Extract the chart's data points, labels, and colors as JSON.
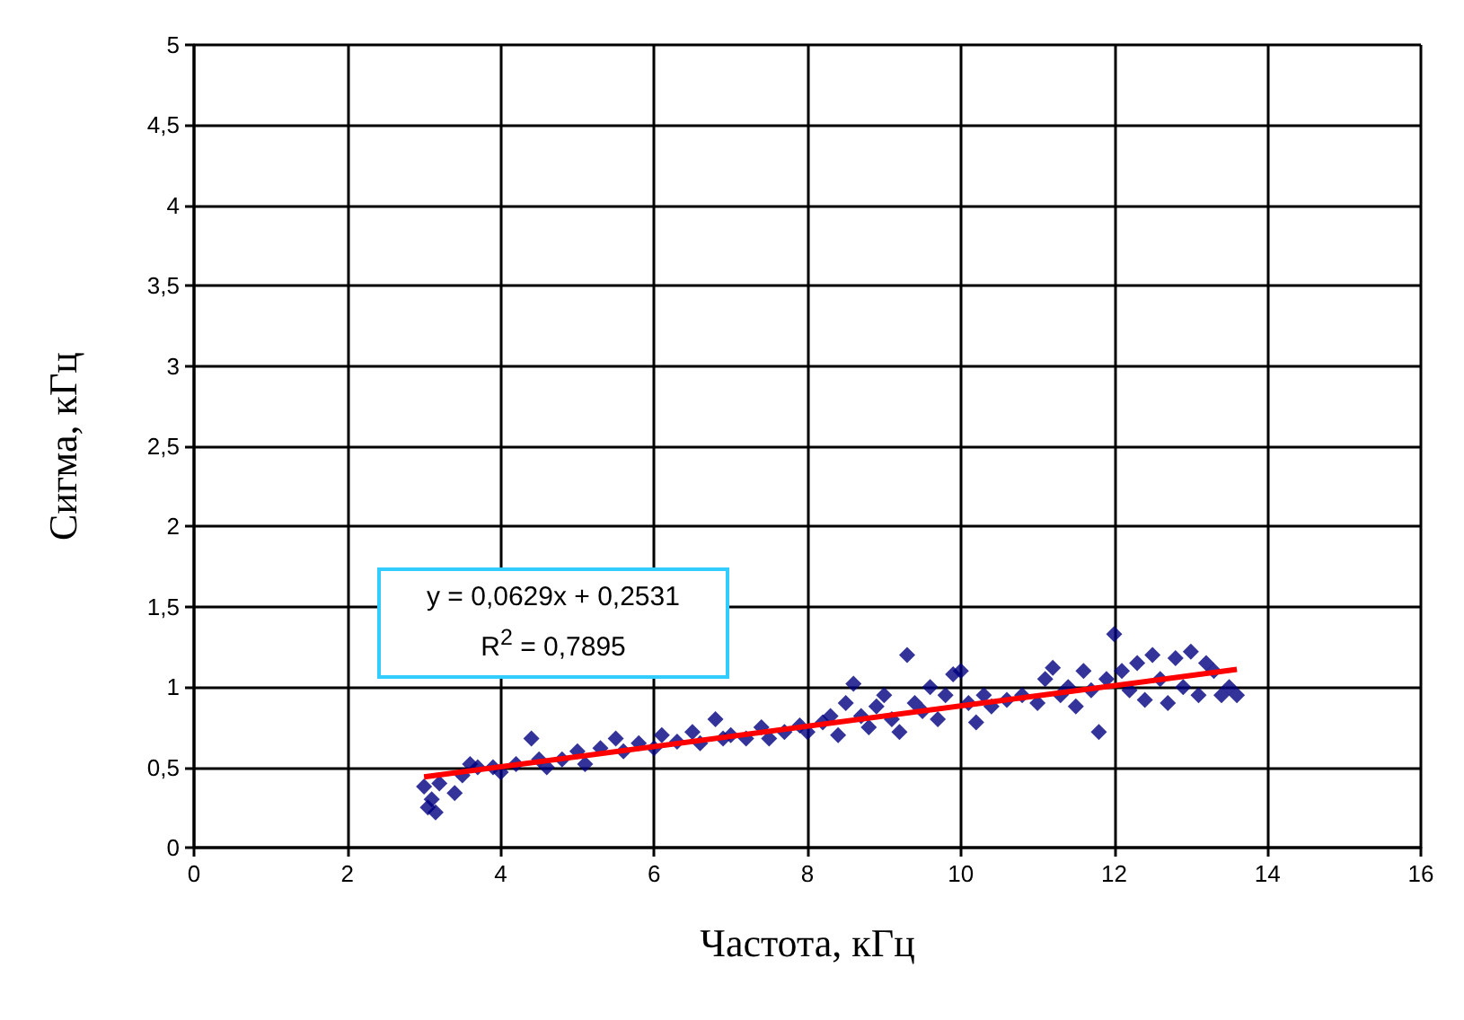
{
  "chart_data": {
    "type": "scatter",
    "xlabel": "Частота, кГц",
    "ylabel": "Сигма, кГц",
    "annotations": [
      "y = 0,0629x + 0,2531\nR$^{2}$ = 0,7895"
    ],
    "xlim": [
      0,
      16
    ],
    "xticks": [
      0,
      2,
      4,
      6,
      8,
      10,
      12,
      14,
      16
    ],
    "ylim": [
      0,
      5
    ],
    "yticks": [
      0,
      {
        "value": 0.5,
        "label": "0,5"
      },
      1,
      {
        "value": 1.5,
        "label": "1,5"
      },
      2,
      {
        "value": 2.5,
        "label": "2,5"
      },
      3,
      {
        "value": 3.5,
        "label": "3,5"
      },
      4,
      {
        "value": 4.5,
        "label": "4,5"
      },
      5
    ],
    "grid": true,
    "series": [
      {
        "marker": "diamond",
        "color": "#000080",
        "x": [
          3.0,
          3.05,
          3.1,
          3.15,
          3.2,
          3.4,
          3.5,
          3.6,
          3.7,
          3.9,
          4.0,
          4.2,
          4.4,
          4.5,
          4.6,
          4.8,
          5.0,
          5.1,
          5.3,
          5.5,
          5.6,
          5.8,
          6.0,
          6.1,
          6.3,
          6.5,
          6.6,
          6.8,
          6.9,
          7.0,
          7.2,
          7.4,
          7.5,
          7.7,
          7.9,
          8.0,
          8.2,
          8.3,
          8.4,
          8.5,
          8.6,
          8.7,
          8.8,
          8.9,
          9.0,
          9.1,
          9.2,
          9.3,
          9.4,
          9.5,
          9.6,
          9.7,
          9.8,
          9.9,
          10.0,
          10.1,
          10.2,
          10.3,
          10.4,
          10.6,
          10.8,
          11.0,
          11.1,
          11.2,
          11.3,
          11.4,
          11.5,
          11.6,
          11.7,
          11.8,
          11.9,
          12.0,
          12.1,
          12.2,
          12.3,
          12.4,
          12.5,
          12.6,
          12.7,
          12.8,
          12.9,
          13.0,
          13.1,
          13.2,
          13.3,
          13.4,
          13.5,
          13.6
        ],
        "values": [
          0.38,
          0.25,
          0.3,
          0.22,
          0.4,
          0.34,
          0.45,
          0.52,
          0.5,
          0.5,
          0.47,
          0.52,
          0.68,
          0.55,
          0.5,
          0.55,
          0.6,
          0.52,
          0.62,
          0.68,
          0.6,
          0.65,
          0.62,
          0.7,
          0.66,
          0.72,
          0.65,
          0.8,
          0.68,
          0.7,
          0.68,
          0.75,
          0.68,
          0.72,
          0.76,
          0.72,
          0.78,
          0.82,
          0.7,
          0.9,
          1.02,
          0.82,
          0.75,
          0.88,
          0.95,
          0.8,
          0.72,
          1.2,
          0.9,
          0.85,
          1.0,
          0.8,
          0.95,
          1.08,
          1.1,
          0.9,
          0.78,
          0.95,
          0.88,
          0.92,
          0.95,
          0.9,
          1.05,
          1.12,
          0.95,
          1.0,
          0.88,
          1.1,
          0.98,
          0.72,
          1.05,
          1.33,
          1.1,
          0.98,
          1.15,
          0.92,
          1.2,
          1.05,
          0.9,
          1.18,
          1.0,
          1.22,
          0.95,
          1.15,
          1.1,
          0.95,
          1.0,
          0.95
        ]
      },
      {
        "type": "line",
        "color": "#ff0000",
        "x": [
          3,
          13.6
        ],
        "values": [
          0.44,
          1.11
        ]
      }
    ]
  }
}
